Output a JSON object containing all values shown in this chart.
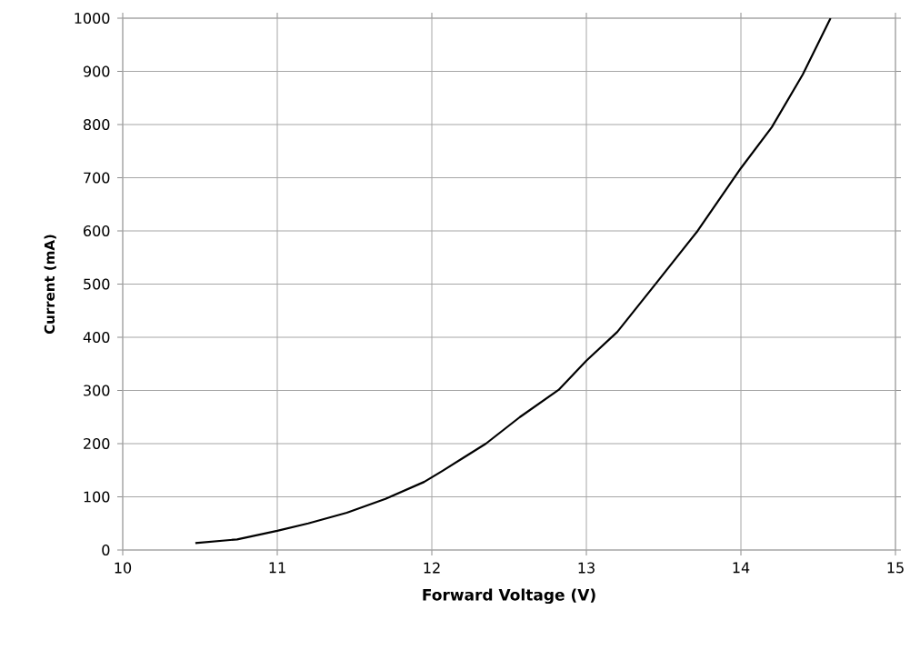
{
  "chart_data": {
    "type": "line",
    "xlabel": "Forward Voltage (V)",
    "ylabel": "Current (mA)",
    "xlim": [
      10,
      15
    ],
    "ylim": [
      0,
      1000
    ],
    "xticks": [
      10,
      11,
      12,
      13,
      14,
      15
    ],
    "yticks": [
      0,
      100,
      200,
      300,
      400,
      500,
      600,
      700,
      800,
      900,
      1000
    ],
    "grid": true,
    "marker": "none",
    "line_style": "solid",
    "series": [
      {
        "color": "#000000",
        "x": [
          10.47,
          10.74,
          11.0,
          11.2,
          11.45,
          11.7,
          11.95,
          12.07,
          12.35,
          12.57,
          12.82,
          13.0,
          13.2,
          13.45,
          13.72,
          14.0,
          14.2,
          14.4,
          14.58
        ],
        "values": [
          13,
          20,
          36,
          50,
          70,
          96,
          128,
          149,
          200,
          250,
          301,
          356,
          410,
          501,
          600,
          718,
          795,
          894,
          1000
        ]
      }
    ]
  }
}
